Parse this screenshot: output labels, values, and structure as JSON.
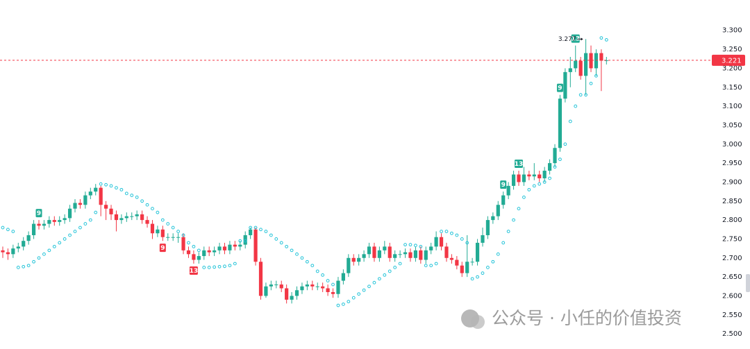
{
  "chart_data": {
    "type": "candlestick",
    "up_color": "#22ab94",
    "down_color": "#f23645",
    "open": [
      2.72,
      2.715,
      2.71,
      2.725,
      2.73,
      2.745,
      2.76,
      2.79,
      2.785,
      2.79,
      2.8,
      2.795,
      2.8,
      2.805,
      2.83,
      2.845,
      2.84,
      2.865,
      2.875,
      2.885,
      2.84,
      2.83,
      2.815,
      2.8,
      2.805,
      2.81,
      2.81,
      2.815,
      2.8,
      2.79,
      2.765,
      2.775,
      2.755,
      2.755,
      2.755,
      2.755,
      2.72,
      2.71,
      2.695,
      2.705,
      2.72,
      2.715,
      2.72,
      2.73,
      2.72,
      2.735,
      2.73,
      2.735,
      2.76,
      2.775,
      2.69,
      2.6,
      2.625,
      2.63,
      2.63,
      2.62,
      2.59,
      2.6,
      2.615,
      2.625,
      2.63,
      2.625,
      2.625,
      2.62,
      2.61,
      2.605,
      2.64,
      2.66,
      2.7,
      2.69,
      2.7,
      2.71,
      2.73,
      2.7,
      2.72,
      2.73,
      2.7,
      2.71,
      2.71,
      2.715,
      2.7,
      2.72,
      2.695,
      2.72,
      2.73,
      2.755,
      2.73,
      2.7,
      2.695,
      2.68,
      2.66,
      2.69,
      2.69,
      2.74,
      2.76,
      2.8,
      2.81,
      2.84,
      2.865,
      2.89,
      2.92,
      2.9,
      2.92,
      2.915,
      2.92,
      2.91,
      2.93,
      2.95,
      2.99,
      3.12,
      3.19,
      3.2,
      3.22,
      3.18,
      3.24,
      3.2,
      3.24,
      3.22
    ],
    "high": [
      2.73,
      2.725,
      2.735,
      2.74,
      2.755,
      2.77,
      2.8,
      2.8,
      2.8,
      2.81,
      2.81,
      2.81,
      2.815,
      2.84,
      2.855,
      2.855,
      2.875,
      2.885,
      2.895,
      2.89,
      2.85,
      2.84,
      2.825,
      2.815,
      2.82,
      2.82,
      2.825,
      2.825,
      2.81,
      2.8,
      2.785,
      2.785,
      2.765,
      2.765,
      2.765,
      2.765,
      2.73,
      2.72,
      2.715,
      2.73,
      2.73,
      2.73,
      2.74,
      2.74,
      2.745,
      2.745,
      2.745,
      2.77,
      2.78,
      2.78,
      2.7,
      2.635,
      2.64,
      2.64,
      2.64,
      2.63,
      2.61,
      2.625,
      2.635,
      2.64,
      2.64,
      2.635,
      2.635,
      2.63,
      2.62,
      2.65,
      2.67,
      2.71,
      2.71,
      2.71,
      2.72,
      2.74,
      2.74,
      2.73,
      2.745,
      2.74,
      2.72,
      2.72,
      2.725,
      2.725,
      2.73,
      2.73,
      2.73,
      2.74,
      2.77,
      2.765,
      2.74,
      2.71,
      2.705,
      2.69,
      2.76,
      2.7,
      2.75,
      2.78,
      2.81,
      2.82,
      2.85,
      2.875,
      2.9,
      2.93,
      2.93,
      2.94,
      2.93,
      2.95,
      2.93,
      2.94,
      2.96,
      3.0,
      3.13,
      3.2,
      3.23,
      3.26,
      3.23,
      3.277,
      3.26,
      3.25,
      3.25,
      3.23
    ],
    "low": [
      2.7,
      2.695,
      2.7,
      2.715,
      2.72,
      2.735,
      2.75,
      2.775,
      2.775,
      2.78,
      2.785,
      2.785,
      2.79,
      2.795,
      2.82,
      2.83,
      2.83,
      2.855,
      2.865,
      2.81,
      2.8,
      2.8,
      2.77,
      2.79,
      2.795,
      2.8,
      2.8,
      2.79,
      2.78,
      2.75,
      2.755,
      2.745,
      2.745,
      2.745,
      2.74,
      2.71,
      2.7,
      2.685,
      2.685,
      2.695,
      2.705,
      2.705,
      2.71,
      2.71,
      2.71,
      2.72,
      2.72,
      2.725,
      2.75,
      2.68,
      2.59,
      2.595,
      2.615,
      2.62,
      2.61,
      2.58,
      2.58,
      2.59,
      2.605,
      2.615,
      2.615,
      2.615,
      2.61,
      2.6,
      2.595,
      2.595,
      2.63,
      2.65,
      2.68,
      2.68,
      2.69,
      2.7,
      2.69,
      2.69,
      2.71,
      2.69,
      2.69,
      2.7,
      2.7,
      2.69,
      2.69,
      2.685,
      2.685,
      2.71,
      2.72,
      2.72,
      2.69,
      2.685,
      2.67,
      2.65,
      2.65,
      2.68,
      2.68,
      2.73,
      2.75,
      2.79,
      2.8,
      2.83,
      2.855,
      2.88,
      2.89,
      2.89,
      2.905,
      2.905,
      2.9,
      2.9,
      2.92,
      2.94,
      2.98,
      3.11,
      3.15,
      3.19,
      3.17,
      3.13,
      3.19,
      3.18,
      3.14,
      3.21
    ],
    "close": [
      2.715,
      2.71,
      2.725,
      2.73,
      2.745,
      2.76,
      2.79,
      2.785,
      2.79,
      2.8,
      2.795,
      2.8,
      2.805,
      2.83,
      2.845,
      2.84,
      2.865,
      2.875,
      2.885,
      2.84,
      2.83,
      2.815,
      2.8,
      2.805,
      2.81,
      2.81,
      2.815,
      2.8,
      2.79,
      2.765,
      2.775,
      2.755,
      2.755,
      2.755,
      2.755,
      2.72,
      2.71,
      2.695,
      2.705,
      2.72,
      2.715,
      2.72,
      2.73,
      2.72,
      2.735,
      2.73,
      2.735,
      2.76,
      2.775,
      2.69,
      2.6,
      2.625,
      2.63,
      2.63,
      2.62,
      2.59,
      2.6,
      2.615,
      2.625,
      2.63,
      2.625,
      2.625,
      2.62,
      2.61,
      2.605,
      2.64,
      2.66,
      2.7,
      2.69,
      2.7,
      2.71,
      2.73,
      2.7,
      2.72,
      2.73,
      2.7,
      2.71,
      2.71,
      2.715,
      2.7,
      2.72,
      2.695,
      2.72,
      2.73,
      2.755,
      2.73,
      2.7,
      2.695,
      2.68,
      2.66,
      2.69,
      2.69,
      2.74,
      2.76,
      2.8,
      2.81,
      2.84,
      2.865,
      2.89,
      2.92,
      2.9,
      2.92,
      2.915,
      2.92,
      2.91,
      2.93,
      2.95,
      2.99,
      3.12,
      3.19,
      3.2,
      3.22,
      3.18,
      3.24,
      3.2,
      3.24,
      3.22,
      3.221
    ],
    "sar": {
      "color": "#22c3d8",
      "values": [
        2.78,
        2.775,
        2.77,
        2.675,
        2.677,
        2.68,
        2.69,
        2.7,
        2.71,
        2.72,
        2.73,
        2.74,
        2.75,
        2.76,
        2.77,
        2.78,
        2.79,
        2.8,
        2.82,
        2.895,
        2.893,
        2.89,
        2.885,
        2.88,
        2.87,
        2.865,
        2.86,
        2.85,
        2.84,
        2.83,
        2.82,
        2.8,
        2.79,
        2.78,
        2.77,
        2.76,
        2.74,
        2.73,
        2.72,
        2.675,
        2.675,
        2.676,
        2.677,
        2.678,
        2.68,
        2.685,
        2.745,
        2.745,
        2.78,
        2.78,
        2.775,
        2.77,
        2.76,
        2.75,
        2.74,
        2.73,
        2.72,
        2.71,
        2.7,
        2.69,
        2.68,
        2.665,
        2.655,
        2.64,
        2.63,
        2.575,
        2.578,
        2.585,
        2.595,
        2.605,
        2.615,
        2.625,
        2.635,
        2.645,
        2.655,
        2.665,
        2.675,
        2.685,
        2.735,
        2.735,
        2.733,
        2.73,
        2.68,
        2.68,
        2.685,
        2.77,
        2.77,
        2.765,
        2.76,
        2.75,
        2.74,
        2.645,
        2.65,
        2.66,
        2.675,
        2.69,
        2.71,
        2.74,
        2.77,
        2.8,
        2.83,
        2.86,
        2.88,
        2.89,
        2.895,
        2.9,
        2.91,
        2.94,
        2.96,
        3.0,
        3.06,
        3.1,
        3.13,
        3.13,
        3.16,
        3.18,
        3.28,
        3.275
      ]
    },
    "td_marks": [
      {
        "index": 7,
        "text": "9",
        "color": "#22ab94"
      },
      {
        "index": 31,
        "text": "9",
        "color": "#f23645"
      },
      {
        "index": 37,
        "text": "13",
        "color": "#f23645"
      },
      {
        "index": 97,
        "text": "9",
        "color": "#22ab94"
      },
      {
        "index": 100,
        "text": "13",
        "color": "#22ab94"
      },
      {
        "index": 108,
        "text": "9",
        "color": "#22ab94"
      },
      {
        "index": 111,
        "text": "13",
        "color": "#22ab94"
      }
    ],
    "last_price": 3.221,
    "last_price_color": "#f23645",
    "high_marker": {
      "value": 3.277,
      "index": 113
    },
    "ylim": [
      2.46,
      3.38
    ],
    "yticks": [
      {
        "value": 3.3,
        "label": "3.300"
      },
      {
        "value": 3.25,
        "label": "3.250"
      },
      {
        "value": 3.2,
        "label": "3.200"
      },
      {
        "value": 3.15,
        "label": "3.150"
      },
      {
        "value": 3.1,
        "label": "3.100"
      },
      {
        "value": 3.05,
        "label": "3.050"
      },
      {
        "value": 3.0,
        "label": "3.000"
      },
      {
        "value": 2.95,
        "label": "2.950"
      },
      {
        "value": 2.9,
        "label": "2.900"
      },
      {
        "value": 2.85,
        "label": "2.850"
      },
      {
        "value": 2.8,
        "label": "2.800"
      },
      {
        "value": 2.75,
        "label": "2.750"
      },
      {
        "value": 2.7,
        "label": "2.700"
      },
      {
        "value": 2.65,
        "label": "2.650"
      },
      {
        "value": 2.6,
        "label": "2.600"
      },
      {
        "value": 2.55,
        "label": "2.550"
      },
      {
        "value": 2.5,
        "label": "2.500"
      }
    ],
    "grid": false
  },
  "watermark": {
    "text": "公众号 · 小任的价值投资"
  }
}
